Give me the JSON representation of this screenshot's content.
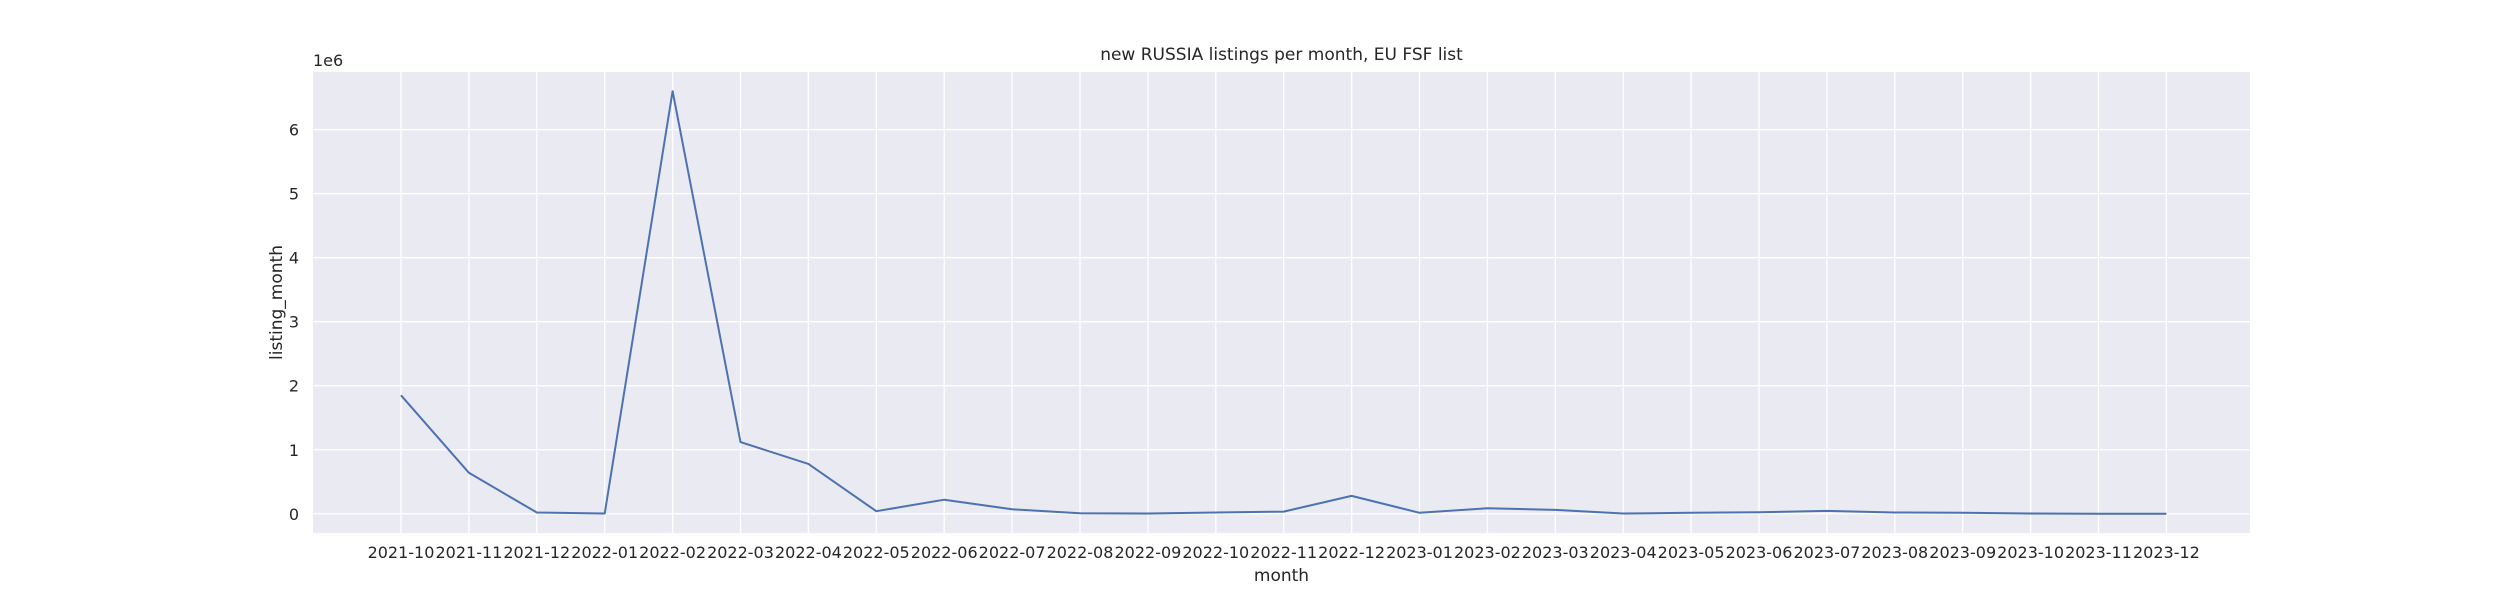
{
  "chart_data": {
    "type": "line",
    "title": "new RUSSIA listings per month, EU FSF list",
    "xlabel": "month",
    "ylabel": "listing_month",
    "y_offset_label": "1e6",
    "y_scale_factor": 1000000,
    "categories": [
      "2021-10",
      "2021-11",
      "2021-12",
      "2022-01",
      "2022-02",
      "2022-03",
      "2022-04",
      "2022-05",
      "2022-06",
      "2022-07",
      "2022-08",
      "2022-09",
      "2022-10",
      "2022-11",
      "2022-12",
      "2023-01",
      "2023-02",
      "2023-03",
      "2023-04",
      "2023-05",
      "2023-06",
      "2023-07",
      "2023-08",
      "2023-09",
      "2023-10",
      "2023-11",
      "2023-12"
    ],
    "series": [
      {
        "values": [
          1850000,
          640000,
          20000,
          5000,
          6600000,
          1120000,
          780000,
          40000,
          220000,
          70000,
          10000,
          5000,
          20000,
          35000,
          280000,
          15000,
          85000,
          60000,
          5000,
          15000,
          25000,
          45000,
          20000,
          15000,
          5000,
          2000,
          2000
        ],
        "color": "#4c72b0"
      }
    ],
    "ylim": [
      -300000,
      6900000
    ],
    "yticks": [
      0,
      1,
      2,
      3,
      4,
      5,
      6
    ],
    "grid": true,
    "background_color": "#eaeaf2",
    "grid_color": "#ffffff"
  }
}
